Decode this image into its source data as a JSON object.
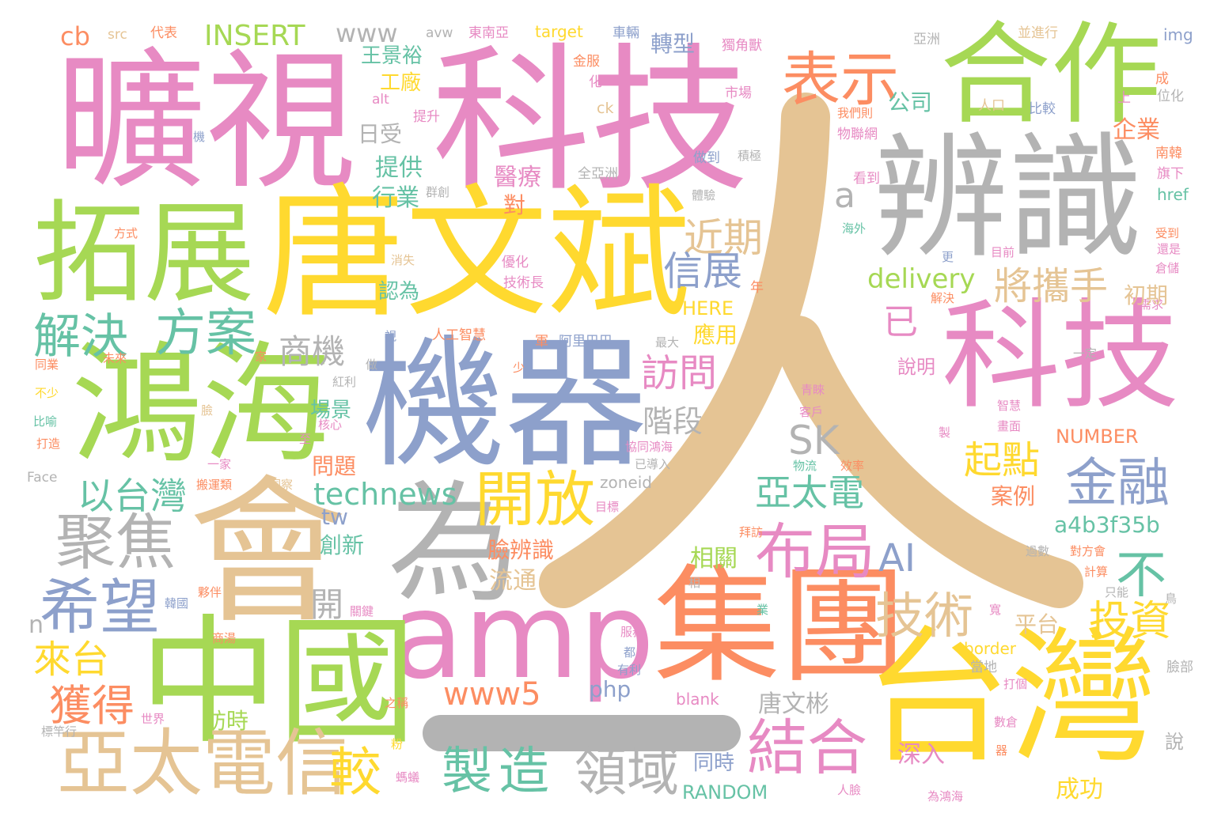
{
  "palette": {
    "pink": "#e78ac3",
    "green": "#a6d854",
    "yellow": "#ffd92f",
    "gray": "#b3b3b3",
    "tan": "#e5c494",
    "blue": "#8da0cb",
    "orange": "#fc8d62",
    "teal": "#66c2a5"
  },
  "words": [
    {
      "text": "人",
      "color": "#e5c494",
      "shape": "ren-glyph"
    },
    {
      "text": "一",
      "color": "#b3b3b3",
      "shape": "bar"
    },
    {
      "text": "曠視",
      "color": "#e78ac3"
    },
    {
      "text": "科技",
      "color": "#e78ac3"
    },
    {
      "text": "合作",
      "color": "#a6d854"
    },
    {
      "text": "辨識",
      "color": "#b3b3b3"
    },
    {
      "text": "拓展",
      "color": "#a6d854"
    },
    {
      "text": "唐文斌",
      "color": "#ffd92f"
    },
    {
      "text": "科技",
      "color": "#e78ac3"
    },
    {
      "text": "鴻海",
      "color": "#a6d854"
    },
    {
      "text": "機器",
      "color": "#8da0cb"
    },
    {
      "text": "會",
      "color": "#e5c494"
    },
    {
      "text": "為",
      "color": "#b3b3b3"
    },
    {
      "text": "amp",
      "color": "#e78ac3"
    },
    {
      "text": "集團",
      "color": "#fc8d62"
    },
    {
      "text": "中國",
      "color": "#a6d854"
    },
    {
      "text": "台灣",
      "color": "#ffd92f"
    },
    {
      "text": "亞太電信",
      "color": "#e5c494"
    },
    {
      "text": "表示",
      "color": "#fc8d62"
    },
    {
      "text": "解決",
      "color": "#66c2a5"
    },
    {
      "text": "方案",
      "color": "#66c2a5"
    },
    {
      "text": "聚焦",
      "color": "#b3b3b3"
    },
    {
      "text": "希望",
      "color": "#8da0cb"
    },
    {
      "text": "開放",
      "color": "#ffd92f"
    },
    {
      "text": "布局",
      "color": "#e78ac3"
    },
    {
      "text": "金融",
      "color": "#8da0cb"
    },
    {
      "text": "結合",
      "color": "#e78ac3"
    },
    {
      "text": "技術",
      "color": "#e5c494"
    },
    {
      "text": "製造",
      "color": "#66c2a5"
    },
    {
      "text": "領域",
      "color": "#b3b3b3"
    },
    {
      "text": "較",
      "color": "#ffd92f"
    },
    {
      "text": "獲得",
      "color": "#fc8d62"
    },
    {
      "text": "來台",
      "color": "#ffd92f"
    },
    {
      "text": "以台灣",
      "color": "#66c2a5"
    },
    {
      "text": "近期",
      "color": "#e5c494"
    },
    {
      "text": "信展",
      "color": "#8da0cb"
    },
    {
      "text": "將攜手",
      "color": "#e5c494"
    },
    {
      "text": "起點",
      "color": "#ffd92f"
    },
    {
      "text": "投資",
      "color": "#ffd92f"
    },
    {
      "text": "亞太電",
      "color": "#66c2a5"
    },
    {
      "text": "不",
      "color": "#66c2a5"
    },
    {
      "text": "www5",
      "color": "#fc8d62"
    },
    {
      "text": "technews",
      "color": "#66c2a5"
    },
    {
      "text": "delivery",
      "color": "#a6d854"
    },
    {
      "text": "SK",
      "color": "#b3b3b3"
    },
    {
      "text": "AI",
      "color": "#8da0cb"
    },
    {
      "text": "訪問",
      "color": "#e78ac3"
    },
    {
      "text": "階段",
      "color": "#b3b3b3"
    },
    {
      "text": "商機",
      "color": "#b3b3b3"
    },
    {
      "text": "已",
      "color": "#e78ac3"
    },
    {
      "text": "a",
      "color": "#b3b3b3"
    },
    {
      "text": "INSERT",
      "color": "#a6d854"
    },
    {
      "text": "www",
      "color": "#b3b3b3"
    },
    {
      "text": "cb",
      "color": "#fc8d62"
    },
    {
      "text": "src",
      "color": "#e5c494"
    },
    {
      "text": "代表",
      "color": "#fc8d62"
    },
    {
      "text": "avw",
      "color": "#b3b3b3"
    },
    {
      "text": "東南亞",
      "color": "#e78ac3"
    },
    {
      "text": "target",
      "color": "#ffd92f"
    },
    {
      "text": "車輛",
      "color": "#8da0cb"
    },
    {
      "text": "亞洲",
      "color": "#b3b3b3"
    },
    {
      "text": "並進行",
      "color": "#e5c494"
    },
    {
      "text": "img",
      "color": "#8da0cb"
    },
    {
      "text": "王景裕",
      "color": "#66c2a5"
    },
    {
      "text": "工廠",
      "color": "#ffd92f"
    },
    {
      "text": "轉型",
      "color": "#8da0cb"
    },
    {
      "text": "獨角獸",
      "color": "#e78ac3"
    },
    {
      "text": "公司",
      "color": "#66c2a5"
    },
    {
      "text": "日受",
      "color": "#b3b3b3"
    },
    {
      "text": "提供",
      "color": "#66c2a5"
    },
    {
      "text": "行業",
      "color": "#66c2a5"
    },
    {
      "text": "醫療",
      "color": "#e78ac3"
    },
    {
      "text": "對",
      "color": "#fc8d62"
    },
    {
      "text": "企業",
      "color": "#fc8d62"
    },
    {
      "text": "南韓",
      "color": "#fc8d62"
    },
    {
      "text": "旗下",
      "color": "#e78ac3"
    },
    {
      "text": "href",
      "color": "#66c2a5"
    },
    {
      "text": "市場",
      "color": "#e78ac3"
    },
    {
      "text": "提升",
      "color": "#e78ac3"
    },
    {
      "text": "金服",
      "color": "#fc8d62"
    },
    {
      "text": "化",
      "color": "#e78ac3"
    },
    {
      "text": "alt",
      "color": "#e78ac3"
    },
    {
      "text": "ck",
      "color": "#e5c494"
    },
    {
      "text": "我們則",
      "color": "#fc8d62"
    },
    {
      "text": "物聯網",
      "color": "#e78ac3"
    },
    {
      "text": "人口",
      "color": "#e5c494"
    },
    {
      "text": "比較",
      "color": "#8da0cb"
    },
    {
      "text": "位化",
      "color": "#b3b3b3"
    },
    {
      "text": "成",
      "color": "#fc8d62"
    },
    {
      "text": "上",
      "color": "#e78ac3"
    },
    {
      "text": "機",
      "color": "#8da0cb"
    },
    {
      "text": "全亞洲",
      "color": "#b3b3b3"
    },
    {
      "text": "做到",
      "color": "#8da0cb"
    },
    {
      "text": "積極",
      "color": "#b3b3b3"
    },
    {
      "text": "看到",
      "color": "#e78ac3"
    },
    {
      "text": "體驗",
      "color": "#b3b3b3"
    },
    {
      "text": "方式",
      "color": "#fc8d62"
    },
    {
      "text": "群創",
      "color": "#b3b3b3"
    },
    {
      "text": "海外",
      "color": "#66c2a5"
    },
    {
      "text": "目前",
      "color": "#e78ac3"
    },
    {
      "text": "受到",
      "color": "#fc8d62"
    },
    {
      "text": "還是",
      "color": "#e78ac3"
    },
    {
      "text": "倉儲",
      "color": "#e78ac3"
    },
    {
      "text": "消失",
      "color": "#e5c494"
    },
    {
      "text": "優化",
      "color": "#e78ac3"
    },
    {
      "text": "技術長",
      "color": "#e78ac3"
    },
    {
      "text": "更",
      "color": "#8da0cb"
    },
    {
      "text": "解決",
      "color": "#fc8d62"
    },
    {
      "text": "需求",
      "color": "#e78ac3"
    },
    {
      "text": "認為",
      "color": "#66c2a5"
    },
    {
      "text": "HERE",
      "color": "#ffd92f"
    },
    {
      "text": "年",
      "color": "#fc8d62"
    },
    {
      "text": "初期",
      "color": "#e5c494"
    },
    {
      "text": "人工智慧",
      "color": "#fc8d62"
    },
    {
      "text": "阿里巴巴",
      "color": "#8da0cb"
    },
    {
      "text": "軍",
      "color": "#fc8d62"
    },
    {
      "text": "應用",
      "color": "#ffd92f"
    },
    {
      "text": "最大",
      "color": "#b3b3b3"
    },
    {
      "text": "說明",
      "color": "#e78ac3"
    },
    {
      "text": "一定",
      "color": "#b3b3b3"
    },
    {
      "text": "同業",
      "color": "#fc8d62"
    },
    {
      "text": "未來",
      "color": "#fc8d62"
    },
    {
      "text": "家",
      "color": "#fc8d62"
    },
    {
      "text": "視",
      "color": "#8da0cb"
    },
    {
      "text": "做",
      "color": "#b3b3b3"
    },
    {
      "text": "少",
      "color": "#fc8d62"
    },
    {
      "text": "不少",
      "color": "#ffd92f"
    },
    {
      "text": "紅利",
      "color": "#b3b3b3"
    },
    {
      "text": "場景",
      "color": "#66c2a5"
    },
    {
      "text": "青睞",
      "color": "#e78ac3"
    },
    {
      "text": "智慧",
      "color": "#e78ac3"
    },
    {
      "text": "比喻",
      "color": "#66c2a5"
    },
    {
      "text": "核心",
      "color": "#e78ac3"
    },
    {
      "text": "臉",
      "color": "#e5c494"
    },
    {
      "text": "至",
      "color": "#e78ac3"
    },
    {
      "text": "客戶",
      "color": "#e78ac3"
    },
    {
      "text": "畫面",
      "color": "#e78ac3"
    },
    {
      "text": "打造",
      "color": "#fc8d62"
    },
    {
      "text": "一家",
      "color": "#e78ac3"
    },
    {
      "text": "問題",
      "color": "#fc8d62"
    },
    {
      "text": "協同鴻海",
      "color": "#e78ac3"
    },
    {
      "text": "製",
      "color": "#e78ac3"
    },
    {
      "text": "NUMBER",
      "color": "#fc8d62"
    },
    {
      "text": "已導入",
      "color": "#b3b3b3"
    },
    {
      "text": "Face",
      "color": "#b3b3b3"
    },
    {
      "text": "搬運類",
      "color": "#fc8d62"
    },
    {
      "text": "洞察",
      "color": "#e5c494"
    },
    {
      "text": "物流",
      "color": "#66c2a5"
    },
    {
      "text": "效率",
      "color": "#fc8d62"
    },
    {
      "text": "zoneid",
      "color": "#b3b3b3"
    },
    {
      "text": "目標",
      "color": "#e78ac3"
    },
    {
      "text": "案例",
      "color": "#fc8d62"
    },
    {
      "text": "a4b3f35b",
      "color": "#66c2a5"
    },
    {
      "text": "tw",
      "color": "#8da0cb"
    },
    {
      "text": "創新",
      "color": "#66c2a5"
    },
    {
      "text": "臉辨識",
      "color": "#fc8d62"
    },
    {
      "text": "拜訪",
      "color": "#fc8d62"
    },
    {
      "text": "過數",
      "color": "#b3b3b3"
    },
    {
      "text": "對方會",
      "color": "#fc8d62"
    },
    {
      "text": "計算",
      "color": "#fc8d62"
    },
    {
      "text": "相關",
      "color": "#a6d854"
    },
    {
      "text": "流通",
      "color": "#e5c494"
    },
    {
      "text": "開",
      "color": "#b3b3b3"
    },
    {
      "text": "n",
      "color": "#b3b3b3"
    },
    {
      "text": "夥伴",
      "color": "#fc8d62"
    },
    {
      "text": "韓國",
      "color": "#8da0cb"
    },
    {
      "text": "關鍵",
      "color": "#e78ac3"
    },
    {
      "text": "相",
      "color": "#b3b3b3"
    },
    {
      "text": "只能",
      "color": "#b3b3b3"
    },
    {
      "text": "鳥",
      "color": "#b3b3b3"
    },
    {
      "text": "平台",
      "color": "#e5c494"
    },
    {
      "text": "寬",
      "color": "#e78ac3"
    },
    {
      "text": "業",
      "color": "#66c2a5"
    },
    {
      "text": "商湯",
      "color": "#fc8d62"
    },
    {
      "text": "服務",
      "color": "#e78ac3"
    },
    {
      "text": "都",
      "color": "#8da0cb"
    },
    {
      "text": "有利",
      "color": "#8da0cb"
    },
    {
      "text": "php",
      "color": "#8da0cb"
    },
    {
      "text": "blank",
      "color": "#e78ac3"
    },
    {
      "text": "唐文彬",
      "color": "#b3b3b3"
    },
    {
      "text": "border",
      "color": "#ffd92f"
    },
    {
      "text": "當地",
      "color": "#b3b3b3"
    },
    {
      "text": "打個",
      "color": "#e78ac3"
    },
    {
      "text": "臉部",
      "color": "#b3b3b3"
    },
    {
      "text": "之稱",
      "color": "#fc8d62"
    },
    {
      "text": "世界",
      "color": "#e78ac3"
    },
    {
      "text": "標竿行",
      "color": "#b3b3b3"
    },
    {
      "text": "訪時",
      "color": "#a6d854"
    },
    {
      "text": "同時",
      "color": "#8da0cb"
    },
    {
      "text": "深入",
      "color": "#e78ac3"
    },
    {
      "text": "數倉",
      "color": "#e78ac3"
    },
    {
      "text": "說",
      "color": "#b3b3b3"
    },
    {
      "text": "粉",
      "color": "#ffd92f"
    },
    {
      "text": "螞蟻",
      "color": "#e78ac3"
    },
    {
      "text": "RANDOM",
      "color": "#66c2a5"
    },
    {
      "text": "人臉",
      "color": "#e78ac3"
    },
    {
      "text": "成功",
      "color": "#ffd92f"
    },
    {
      "text": "為鴻海",
      "color": "#e78ac3"
    },
    {
      "text": "器",
      "color": "#fc8d62"
    }
  ]
}
